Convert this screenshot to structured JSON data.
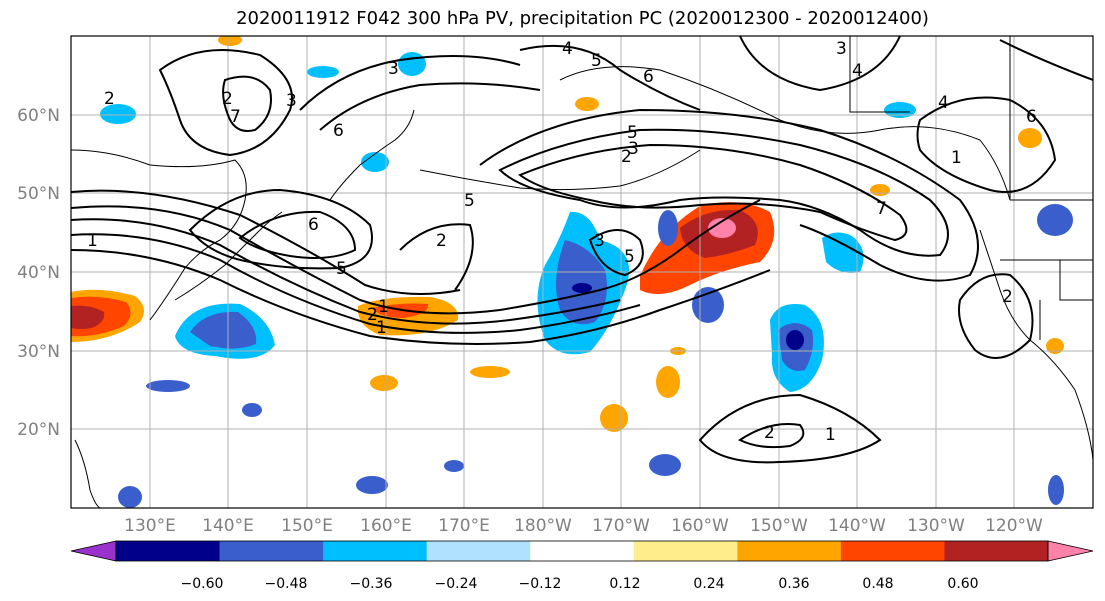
{
  "title": "2020011912 F042 300 hPa PV, precipitation PC (2020012300 - 2020012400)",
  "map": {
    "projection": "PlateCarree",
    "lon_range_east_deg": [
      120,
      250
    ],
    "lat_range_deg": [
      10,
      70
    ],
    "gridlines": true,
    "lon_tick_labels": [
      "130°E",
      "140°E",
      "150°E",
      "160°E",
      "170°E",
      "180°W",
      "170°W",
      "160°W",
      "150°W",
      "140°W",
      "130°W",
      "120°W"
    ],
    "lat_tick_labels": [
      "20°N",
      "30°N",
      "40°N",
      "50°N",
      "60°N"
    ]
  },
  "pv_contour_labels": [
    "1",
    "2",
    "3",
    "4",
    "5",
    "6",
    "7",
    "2",
    "3",
    "4",
    "5",
    "6",
    "1",
    "2",
    "5",
    "3",
    "5",
    "2",
    "3",
    "5",
    "6",
    "2",
    "1",
    "2",
    "1",
    "2",
    "7",
    "1",
    "3",
    "4",
    "6"
  ],
  "colorbar": {
    "extend": "both",
    "colors": [
      "#9932cc",
      "#00008b",
      "#3a5fcd",
      "#00bfff",
      "#b0e2ff",
      "#ffffff",
      "#ffec8b",
      "#ffa500",
      "#ff4500",
      "#b22222",
      "#ff82ab"
    ],
    "tick_labels": [
      "−0.60",
      "−0.48",
      "−0.36",
      "−0.24",
      "−0.12",
      "0.12",
      "0.24",
      "0.36",
      "0.48",
      "0.60"
    ]
  }
}
